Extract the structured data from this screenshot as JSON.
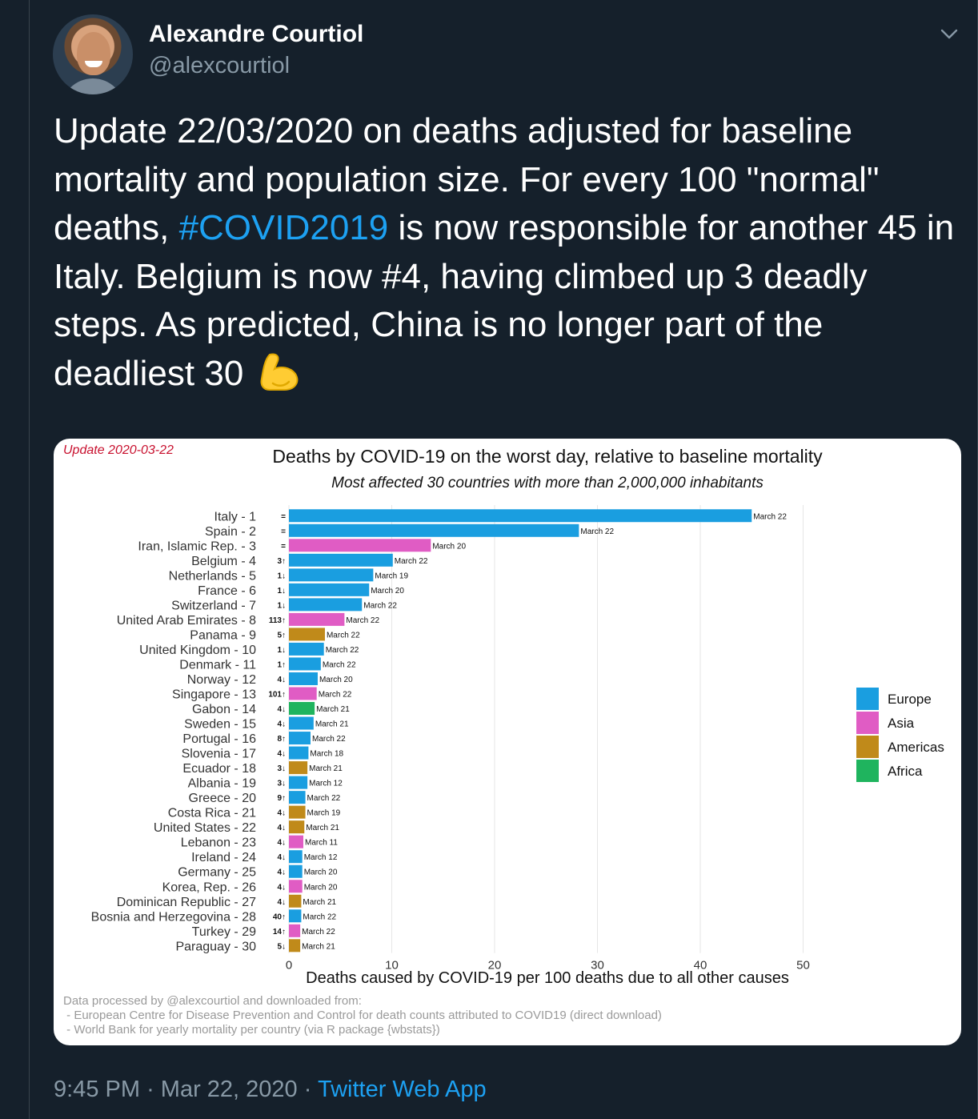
{
  "tweet": {
    "author_name": "Alexandre Courtiol",
    "author_handle": "@alexcourtiol",
    "text_before": "Update 22/03/2020 on deaths adjusted for baseline mortality and population size. For every 100 \"normal\" deaths, ",
    "hashtag": "#COVID2019",
    "text_after": " is now responsible for another 45 in Italy. Belgium is now #4, having climbed up 3 deadly steps. As predicted, China is no longer part of the deadliest 30 ",
    "emoji": "flexed-biceps",
    "time": "9:45 PM",
    "separator": "·",
    "date": "Mar 22, 2020",
    "app": "Twitter Web App"
  },
  "icons": {
    "menu": "chevron-down-icon",
    "avatar": "avatar-photo"
  },
  "chart_data": {
    "type": "bar",
    "orientation": "horizontal",
    "update_label": "Update 2020-03-22",
    "title": "Deaths by COVID-19 on the worst day, relative to baseline mortality",
    "subtitle": "Most affected 30 countries with more than 2,000,000 inhabitants",
    "xlabel": "Deaths caused by COVID-19 per 100 deaths due to all other causes",
    "xlim": [
      0,
      50
    ],
    "xticks": [
      0,
      10,
      20,
      30,
      40,
      50
    ],
    "grid": true,
    "legend_position": "right",
    "legend": [
      {
        "name": "Europe",
        "color": "#1a9ee0"
      },
      {
        "name": "Asia",
        "color": "#e05cc4"
      },
      {
        "name": "Americas",
        "color": "#c08a1a"
      },
      {
        "name": "Africa",
        "color": "#1fb45e"
      }
    ],
    "rows": [
      {
        "label": "Italy - 1",
        "change": "=",
        "value": 45.0,
        "region": "Europe",
        "date": "March 22"
      },
      {
        "label": "Spain - 2",
        "change": "=",
        "value": 28.2,
        "region": "Europe",
        "date": "March 22"
      },
      {
        "label": "Iran, Islamic Rep. - 3",
        "change": "=",
        "value": 13.8,
        "region": "Asia",
        "date": "March 20"
      },
      {
        "label": "Belgium - 4",
        "change": "3↑",
        "value": 10.1,
        "region": "Europe",
        "date": "March 22"
      },
      {
        "label": "Netherlands - 5",
        "change": "1↓",
        "value": 8.2,
        "region": "Europe",
        "date": "March 19"
      },
      {
        "label": "France - 6",
        "change": "1↓",
        "value": 7.8,
        "region": "Europe",
        "date": "March 20"
      },
      {
        "label": "Switzerland - 7",
        "change": "1↓",
        "value": 7.1,
        "region": "Europe",
        "date": "March 22"
      },
      {
        "label": "United Arab Emirates - 8",
        "change": "113↑",
        "value": 5.4,
        "region": "Asia",
        "date": "March 22"
      },
      {
        "label": "Panama - 9",
        "change": "5↑",
        "value": 3.5,
        "region": "Americas",
        "date": "March 22"
      },
      {
        "label": "United Kingdom - 10",
        "change": "1↓",
        "value": 3.4,
        "region": "Europe",
        "date": "March 22"
      },
      {
        "label": "Denmark - 11",
        "change": "1↑",
        "value": 3.1,
        "region": "Europe",
        "date": "March 22"
      },
      {
        "label": "Norway - 12",
        "change": "4↓",
        "value": 2.8,
        "region": "Europe",
        "date": "March 20"
      },
      {
        "label": "Singapore - 13",
        "change": "101↑",
        "value": 2.7,
        "region": "Asia",
        "date": "March 22"
      },
      {
        "label": "Gabon - 14",
        "change": "4↓",
        "value": 2.5,
        "region": "Africa",
        "date": "March 21"
      },
      {
        "label": "Sweden - 15",
        "change": "4↓",
        "value": 2.4,
        "region": "Europe",
        "date": "March 21"
      },
      {
        "label": "Portugal - 16",
        "change": "8↑",
        "value": 2.1,
        "region": "Europe",
        "date": "March 22"
      },
      {
        "label": "Slovenia - 17",
        "change": "4↓",
        "value": 1.9,
        "region": "Europe",
        "date": "March 18"
      },
      {
        "label": "Ecuador - 18",
        "change": "3↓",
        "value": 1.8,
        "region": "Americas",
        "date": "March 21"
      },
      {
        "label": "Albania - 19",
        "change": "3↓",
        "value": 1.8,
        "region": "Europe",
        "date": "March 12"
      },
      {
        "label": "Greece - 20",
        "change": "9↑",
        "value": 1.6,
        "region": "Europe",
        "date": "March 22"
      },
      {
        "label": "Costa Rica - 21",
        "change": "4↓",
        "value": 1.6,
        "region": "Americas",
        "date": "March 19"
      },
      {
        "label": "United States - 22",
        "change": "4↓",
        "value": 1.5,
        "region": "Americas",
        "date": "March 21"
      },
      {
        "label": "Lebanon - 23",
        "change": "4↓",
        "value": 1.4,
        "region": "Asia",
        "date": "March 11"
      },
      {
        "label": "Ireland - 24",
        "change": "4↓",
        "value": 1.3,
        "region": "Europe",
        "date": "March 12"
      },
      {
        "label": "Germany - 25",
        "change": "4↓",
        "value": 1.3,
        "region": "Europe",
        "date": "March 20"
      },
      {
        "label": "Korea, Rep. - 26",
        "change": "4↓",
        "value": 1.3,
        "region": "Asia",
        "date": "March 20"
      },
      {
        "label": "Dominican Republic - 27",
        "change": "4↓",
        "value": 1.2,
        "region": "Americas",
        "date": "March 21"
      },
      {
        "label": "Bosnia and Herzegovina - 28",
        "change": "40↑",
        "value": 1.2,
        "region": "Europe",
        "date": "March 22"
      },
      {
        "label": "Turkey - 29",
        "change": "14↑",
        "value": 1.1,
        "region": "Asia",
        "date": "March 22"
      },
      {
        "label": "Paraguay - 30",
        "change": "5↓",
        "value": 1.1,
        "region": "Americas",
        "date": "March 21"
      }
    ],
    "source_lines": [
      "Data processed by @alexcourtiol and downloaded from:",
      " - European Centre for Disease Prevention and Control for death counts attributed to COVID19 (direct download)",
      " - World Bank for yearly mortality per country (via R package {wbstats})"
    ],
    "colors": {
      "update_label": "#c8102e",
      "grid": "#e6e6e6",
      "source_text": "#9a9a9a"
    }
  }
}
